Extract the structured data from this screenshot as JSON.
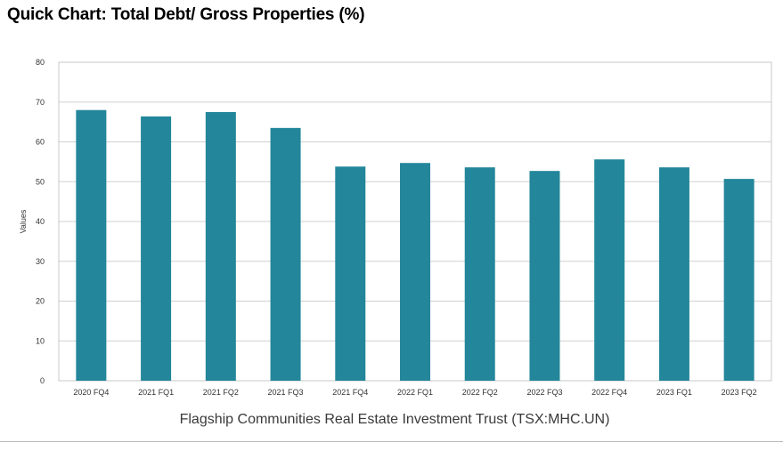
{
  "page": {
    "title": "Quick Chart: Total Debt/ Gross Properties (%)"
  },
  "chart_data": {
    "type": "bar",
    "categories": [
      "2020 FQ4",
      "2021 FQ1",
      "2021 FQ2",
      "2021 FQ3",
      "2021 FQ4",
      "2022 FQ1",
      "2022 FQ2",
      "2022 FQ3",
      "2022 FQ4",
      "2023 FQ1",
      "2023 FQ2"
    ],
    "values": [
      68.0,
      66.4,
      67.5,
      63.5,
      53.8,
      54.7,
      53.6,
      52.7,
      55.6,
      53.6,
      50.7
    ],
    "ylabel": "Values",
    "xlabel": "Flagship Communities Real Estate Investment Trust (TSX:MHC.UN)",
    "ylim": [
      0,
      80
    ],
    "yticks": [
      0,
      10,
      20,
      30,
      40,
      50,
      60,
      70,
      80
    ],
    "grid": true,
    "bar_color": "#23869a",
    "grid_color": "#d0d0d0"
  }
}
